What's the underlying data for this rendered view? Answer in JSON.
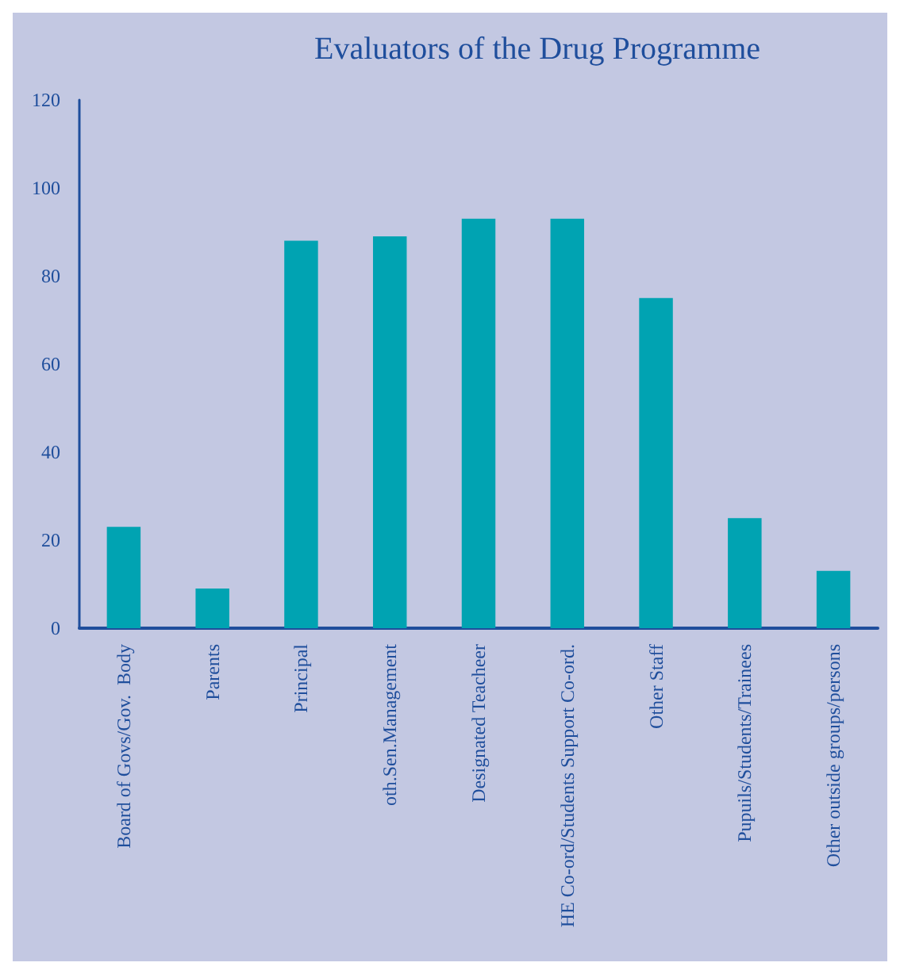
{
  "chart_data": {
    "type": "bar",
    "title": "Evaluators of the Drug Programme",
    "categories": [
      "Board of Govs/Gov.  Body",
      "Parents",
      "Principal",
      "oth.Sen.Management",
      "Designated Teacheer",
      "HE Co-ord/Students Support Co-ord.",
      "Other Staff",
      "Pupuils/Students/Trainees",
      "Other outside groups/persons"
    ],
    "values": [
      23,
      9,
      88,
      89,
      93,
      93,
      75,
      25,
      13
    ],
    "color": "#00a3b2",
    "ylim": [
      0,
      120
    ],
    "yticks": [
      0,
      20,
      40,
      60,
      80,
      100,
      120
    ],
    "grid": false
  }
}
